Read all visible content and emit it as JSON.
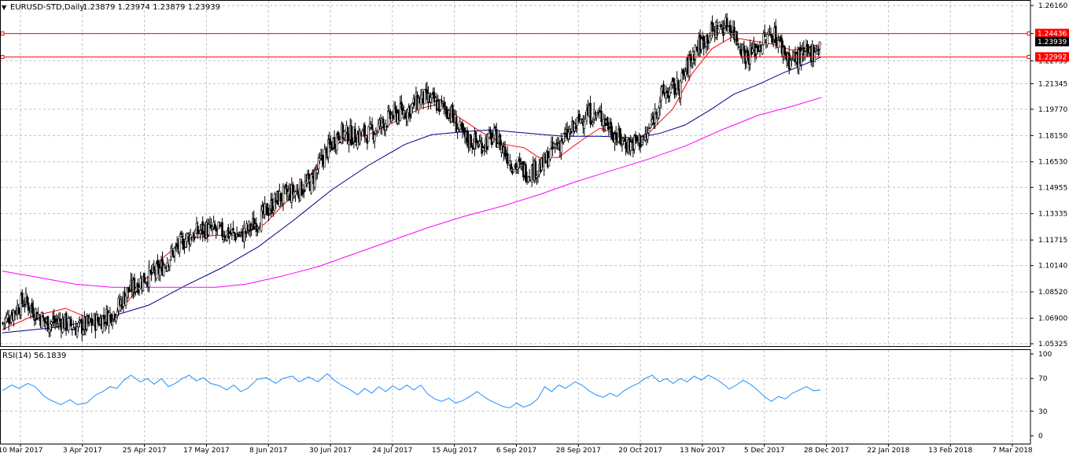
{
  "header": {
    "symbol": "EURUSD-STD,Daily",
    "ohlc": "1.23879 1.23974 1.23879 1.23939"
  },
  "rsi_panel": {
    "title": "RSI(14) 56.1839",
    "levels": [
      "100",
      "70",
      "30",
      "0"
    ]
  },
  "price_boxes": {
    "upper": "1.24436",
    "current": "1.23939",
    "lower": "1.22992"
  },
  "colors": {
    "sma_fast": "#ff0000",
    "sma_mid": "#00008b",
    "sma_slow": "#ff00ff",
    "rsi_line": "#1e90ff",
    "hline": "#ff0000",
    "grid": "#c0c0c0"
  },
  "chart_data": [
    {
      "type": "candlestick",
      "y_ticks": [
        "1.26160",
        "1.24435",
        "1.22755",
        "1.21345",
        "1.19770",
        "1.18150",
        "1.16530",
        "1.14955",
        "1.13335",
        "1.11715",
        "1.10140",
        "1.08520",
        "1.06900",
        "1.05325"
      ],
      "ylim": [
        1.05325,
        1.2616
      ],
      "x_ticks": [
        "10 Mar 2017",
        "3 Apr 2017",
        "25 Apr 2017",
        "17 May 2017",
        "8 Jun 2017",
        "30 Jun 2017",
        "24 Jul 2017",
        "15 Aug 2017",
        "6 Sep 2017",
        "28 Sep 2017",
        "20 Oct 2017",
        "13 Nov 2017",
        "5 Dec 2017",
        "28 Dec 2017",
        "22 Jan 2018",
        "13 Feb 2018",
        "7 Mar 2018"
      ],
      "horizontal_lines": [
        1.24436,
        1.22992
      ],
      "last_price": 1.23939,
      "close_path": [
        [
          0,
          1.066
        ],
        [
          10,
          1.074
        ],
        [
          18,
          1.08
        ],
        [
          25,
          1.074
        ],
        [
          36,
          1.066
        ],
        [
          48,
          1.067
        ],
        [
          60,
          1.063
        ],
        [
          70,
          1.065
        ],
        [
          80,
          1.068
        ],
        [
          92,
          1.073
        ],
        [
          102,
          1.085
        ],
        [
          115,
          1.093
        ],
        [
          128,
          1.098
        ],
        [
          138,
          1.108
        ],
        [
          150,
          1.118
        ],
        [
          165,
          1.124
        ],
        [
          180,
          1.122
        ],
        [
          196,
          1.12
        ],
        [
          212,
          1.131
        ],
        [
          226,
          1.143
        ],
        [
          240,
          1.147
        ],
        [
          253,
          1.153
        ],
        [
          264,
          1.17
        ],
        [
          276,
          1.183
        ],
        [
          290,
          1.181
        ],
        [
          302,
          1.183
        ],
        [
          320,
          1.194
        ],
        [
          332,
          1.197
        ],
        [
          344,
          1.205
        ],
        [
          356,
          1.201
        ],
        [
          366,
          1.197
        ],
        [
          378,
          1.18
        ],
        [
          392,
          1.176
        ],
        [
          404,
          1.181
        ],
        [
          418,
          1.164
        ],
        [
          430,
          1.159
        ],
        [
          442,
          1.162
        ],
        [
          452,
          1.174
        ],
        [
          464,
          1.182
        ],
        [
          478,
          1.195
        ],
        [
          492,
          1.193
        ],
        [
          504,
          1.18
        ],
        [
          514,
          1.176
        ],
        [
          528,
          1.18
        ],
        [
          540,
          1.206
        ],
        [
          555,
          1.212
        ],
        [
          568,
          1.235
        ],
        [
          584,
          1.247
        ],
        [
          596,
          1.25
        ],
        [
          610,
          1.23
        ],
        [
          622,
          1.238
        ],
        [
          632,
          1.245
        ],
        [
          645,
          1.228
        ],
        [
          658,
          1.23
        ],
        [
          670,
          1.237
        ]
      ],
      "series": [
        {
          "name": "",
          "color": "#ff0000",
          "points": [
            [
              0,
              1.062
            ],
            [
              24,
              1.07
            ],
            [
              52,
              1.075
            ],
            [
              74,
              1.068
            ],
            [
              94,
              1.071
            ],
            [
              110,
              1.086
            ],
            [
              130,
              1.105
            ],
            [
              150,
              1.118
            ],
            [
              175,
              1.12
            ],
            [
              196,
              1.12
            ],
            [
              215,
              1.127
            ],
            [
              232,
              1.14
            ],
            [
              248,
              1.152
            ],
            [
              262,
              1.168
            ],
            [
              278,
              1.178
            ],
            [
              300,
              1.182
            ],
            [
              322,
              1.19
            ],
            [
              342,
              1.198
            ],
            [
              358,
              1.201
            ],
            [
              372,
              1.194
            ],
            [
              392,
              1.184
            ],
            [
              412,
              1.176
            ],
            [
              428,
              1.174
            ],
            [
              440,
              1.168
            ],
            [
              456,
              1.168
            ],
            [
              474,
              1.178
            ],
            [
              490,
              1.186
            ],
            [
              502,
              1.183
            ],
            [
              514,
              1.178
            ],
            [
              530,
              1.183
            ],
            [
              550,
              1.198
            ],
            [
              566,
              1.22
            ],
            [
              582,
              1.235
            ],
            [
              598,
              1.242
            ],
            [
              614,
              1.24
            ],
            [
              630,
              1.238
            ],
            [
              648,
              1.234
            ],
            [
              662,
              1.236
            ],
            [
              672,
              1.238
            ]
          ]
        },
        {
          "name": "",
          "color": "#00008b",
          "points": [
            [
              0,
              1.06
            ],
            [
              40,
              1.063
            ],
            [
              80,
              1.068
            ],
            [
              120,
              1.077
            ],
            [
              150,
              1.089
            ],
            [
              180,
              1.1
            ],
            [
              210,
              1.113
            ],
            [
              240,
              1.13
            ],
            [
              270,
              1.148
            ],
            [
              300,
              1.163
            ],
            [
              330,
              1.176
            ],
            [
              352,
              1.182
            ],
            [
              380,
              1.184
            ],
            [
              400,
              1.185
            ],
            [
              430,
              1.183
            ],
            [
              460,
              1.181
            ],
            [
              490,
              1.181
            ],
            [
              520,
              1.18
            ],
            [
              540,
              1.183
            ],
            [
              560,
              1.188
            ],
            [
              580,
              1.197
            ],
            [
              600,
              1.207
            ],
            [
              620,
              1.213
            ],
            [
              640,
              1.22
            ],
            [
              660,
              1.226
            ],
            [
              672,
              1.23
            ]
          ]
        },
        {
          "name": "",
          "color": "#ff00ff",
          "points": [
            [
              0,
              1.098
            ],
            [
              30,
              1.094
            ],
            [
              60,
              1.09
            ],
            [
              90,
              1.088
            ],
            [
              120,
              1.088
            ],
            [
              150,
              1.088
            ],
            [
              175,
              1.088
            ],
            [
              200,
              1.09
            ],
            [
              230,
              1.095
            ],
            [
              260,
              1.101
            ],
            [
              290,
              1.109
            ],
            [
              320,
              1.117
            ],
            [
              350,
              1.125
            ],
            [
              380,
              1.132
            ],
            [
              410,
              1.138
            ],
            [
              440,
              1.145
            ],
            [
              470,
              1.153
            ],
            [
              500,
              1.16
            ],
            [
              530,
              1.167
            ],
            [
              560,
              1.175
            ],
            [
              590,
              1.185
            ],
            [
              620,
              1.194
            ],
            [
              650,
              1.2
            ],
            [
              672,
              1.205
            ]
          ]
        }
      ]
    },
    {
      "type": "line",
      "title": "RSI(14) 56.1839",
      "ylim": [
        0,
        100
      ],
      "y_ticks": [
        100,
        70,
        30,
        0
      ],
      "series": [
        {
          "name": "",
          "color": "#1e90ff",
          "points": [
            [
              0,
              55
            ],
            [
              8,
              62
            ],
            [
              14,
              58
            ],
            [
              22,
              64
            ],
            [
              28,
              60
            ],
            [
              36,
              48
            ],
            [
              42,
              43
            ],
            [
              50,
              38
            ],
            [
              58,
              44
            ],
            [
              64,
              38
            ],
            [
              72,
              40
            ],
            [
              80,
              50
            ],
            [
              86,
              54
            ],
            [
              92,
              60
            ],
            [
              98,
              58
            ],
            [
              104,
              68
            ],
            [
              110,
              74
            ],
            [
              118,
              66
            ],
            [
              124,
              70
            ],
            [
              130,
              63
            ],
            [
              136,
              70
            ],
            [
              142,
              60
            ],
            [
              148,
              64
            ],
            [
              154,
              70
            ],
            [
              160,
              74
            ],
            [
              166,
              67
            ],
            [
              172,
              71
            ],
            [
              178,
              64
            ],
            [
              186,
              61
            ],
            [
              192,
              56
            ],
            [
              198,
              62
            ],
            [
              204,
              54
            ],
            [
              210,
              58
            ],
            [
              218,
              69
            ],
            [
              226,
              71
            ],
            [
              234,
              64
            ],
            [
              240,
              70
            ],
            [
              248,
              73
            ],
            [
              254,
              66
            ],
            [
              262,
              72
            ],
            [
              270,
              66
            ],
            [
              278,
              76
            ],
            [
              284,
              68
            ],
            [
              290,
              62
            ],
            [
              298,
              56
            ],
            [
              304,
              50
            ],
            [
              310,
              58
            ],
            [
              316,
              52
            ],
            [
              322,
              60
            ],
            [
              328,
              54
            ],
            [
              334,
              61
            ],
            [
              340,
              56
            ],
            [
              346,
              62
            ],
            [
              352,
              56
            ],
            [
              358,
              62
            ],
            [
              364,
              51
            ],
            [
              370,
              45
            ],
            [
              376,
              42
            ],
            [
              382,
              46
            ],
            [
              388,
              40
            ],
            [
              394,
              43
            ],
            [
              400,
              48
            ],
            [
              406,
              54
            ],
            [
              410,
              50
            ],
            [
              416,
              44
            ],
            [
              422,
              40
            ],
            [
              428,
              36
            ],
            [
              434,
              34
            ],
            [
              440,
              40
            ],
            [
              446,
              35
            ],
            [
              452,
              38
            ],
            [
              458,
              45
            ],
            [
              464,
              60
            ],
            [
              470,
              54
            ],
            [
              476,
              62
            ],
            [
              482,
              58
            ],
            [
              490,
              66
            ],
            [
              496,
              62
            ],
            [
              502,
              55
            ],
            [
              508,
              50
            ],
            [
              514,
              47
            ],
            [
              520,
              52
            ],
            [
              526,
              48
            ],
            [
              532,
              55
            ],
            [
              538,
              60
            ],
            [
              544,
              64
            ],
            [
              550,
              70
            ],
            [
              556,
              74
            ],
            [
              562,
              66
            ],
            [
              568,
              70
            ],
            [
              574,
              64
            ],
            [
              580,
              70
            ],
            [
              586,
              66
            ],
            [
              592,
              73
            ],
            [
              598,
              68
            ],
            [
              604,
              74
            ],
            [
              610,
              70
            ],
            [
              616,
              64
            ],
            [
              622,
              57
            ],
            [
              628,
              62
            ],
            [
              634,
              68
            ],
            [
              640,
              63
            ],
            [
              646,
              56
            ],
            [
              652,
              48
            ],
            [
              658,
              42
            ],
            [
              664,
              48
            ],
            [
              670,
              45
            ],
            [
              676,
              52
            ],
            [
              682,
              56
            ],
            [
              688,
              60
            ],
            [
              694,
              55
            ],
            [
              700,
              56
            ]
          ]
        }
      ]
    }
  ]
}
